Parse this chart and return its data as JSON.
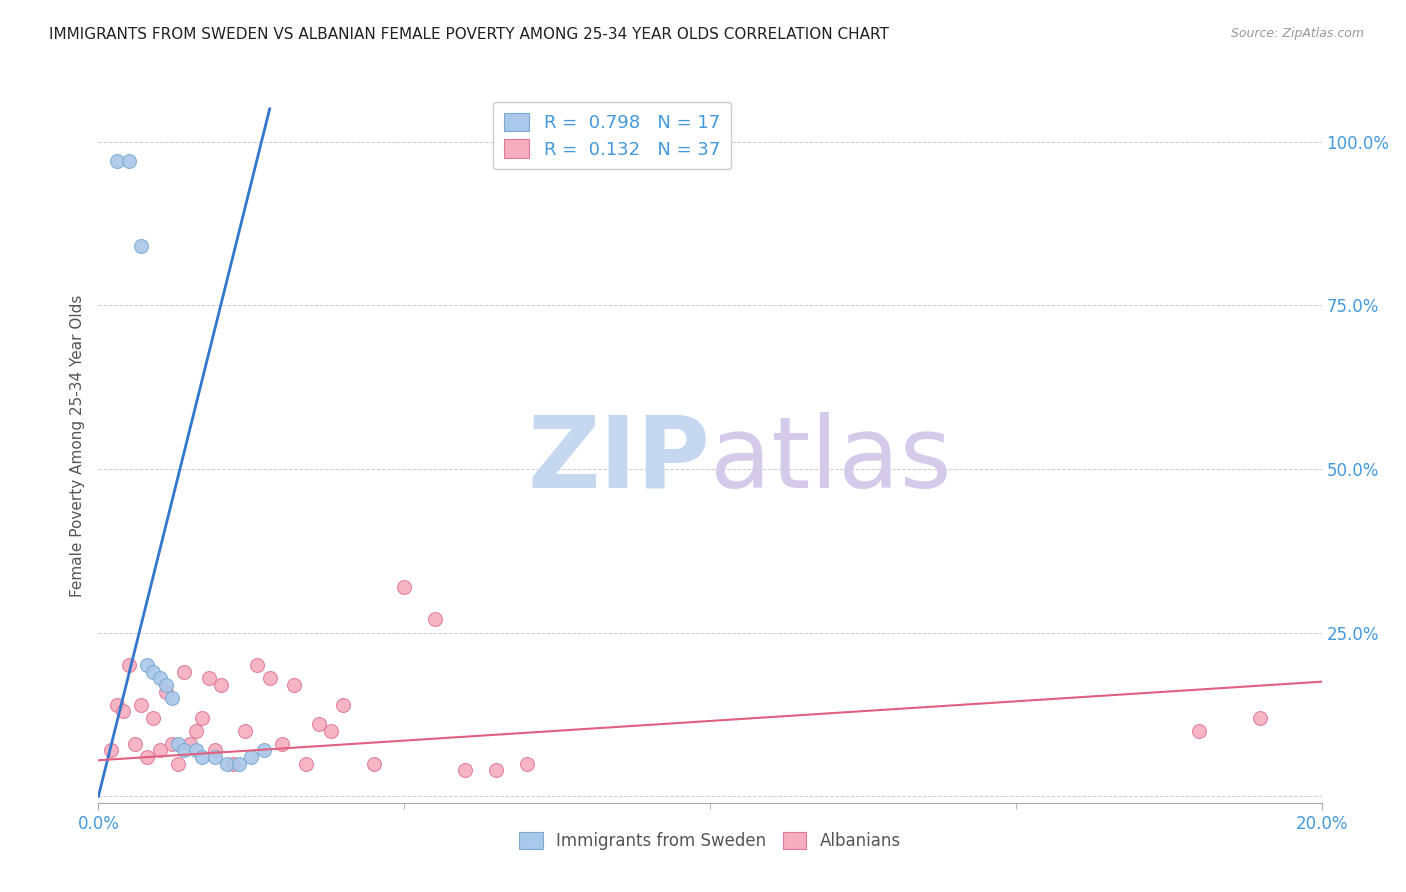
{
  "title": "IMMIGRANTS FROM SWEDEN VS ALBANIAN FEMALE POVERTY AMONG 25-34 YEAR OLDS CORRELATION CHART",
  "source": "Source: ZipAtlas.com",
  "ylabel": "Female Poverty Among 25-34 Year Olds",
  "ytick_labels": [
    "",
    "25.0%",
    "50.0%",
    "75.0%",
    "100.0%"
  ],
  "ytick_values": [
    0,
    0.25,
    0.5,
    0.75,
    1.0
  ],
  "xtick_major": [
    0.0,
    0.2
  ],
  "xtick_major_labels": [
    "0.0%",
    "20.0%"
  ],
  "xtick_minor": [
    0.05,
    0.1,
    0.15
  ],
  "xlim": [
    0,
    0.2
  ],
  "ylim": [
    -0.01,
    1.08
  ],
  "legend_entries": [
    {
      "label": "Immigrants from Sweden",
      "R": "0.798",
      "N": "17",
      "color": "#aac8ea",
      "edgecolor": "#7aaad0"
    },
    {
      "label": "Albanians",
      "R": "0.132",
      "N": "37",
      "color": "#f5adbf",
      "edgecolor": "#e07898"
    }
  ],
  "sweden_scatter": {
    "x": [
      0.003,
      0.005,
      0.007,
      0.008,
      0.009,
      0.01,
      0.011,
      0.012,
      0.013,
      0.014,
      0.016,
      0.017,
      0.019,
      0.021,
      0.023,
      0.025,
      0.027
    ],
    "y": [
      0.97,
      0.97,
      0.84,
      0.2,
      0.19,
      0.18,
      0.17,
      0.15,
      0.08,
      0.07,
      0.07,
      0.06,
      0.06,
      0.05,
      0.05,
      0.06,
      0.07
    ],
    "size": 100
  },
  "albanian_scatter": {
    "x": [
      0.002,
      0.003,
      0.004,
      0.005,
      0.006,
      0.007,
      0.008,
      0.009,
      0.01,
      0.011,
      0.012,
      0.013,
      0.014,
      0.015,
      0.016,
      0.017,
      0.018,
      0.019,
      0.02,
      0.022,
      0.024,
      0.026,
      0.028,
      0.03,
      0.032,
      0.034,
      0.036,
      0.038,
      0.04,
      0.045,
      0.05,
      0.055,
      0.06,
      0.065,
      0.07,
      0.18,
      0.19
    ],
    "y": [
      0.07,
      0.14,
      0.13,
      0.2,
      0.08,
      0.14,
      0.06,
      0.12,
      0.07,
      0.16,
      0.08,
      0.05,
      0.19,
      0.08,
      0.1,
      0.12,
      0.18,
      0.07,
      0.17,
      0.05,
      0.1,
      0.2,
      0.18,
      0.08,
      0.17,
      0.05,
      0.11,
      0.1,
      0.14,
      0.05,
      0.32,
      0.27,
      0.04,
      0.04,
      0.05,
      0.1,
      0.12
    ],
    "size": 100
  },
  "sweden_trend_x": [
    0.0,
    0.028
  ],
  "sweden_trend_y": [
    0.0,
    1.05
  ],
  "albanian_trend_x": [
    0.0,
    0.2
  ],
  "albanian_trend_y": [
    0.055,
    0.175
  ],
  "sweden_trend_color": "#3377cc",
  "albanian_trend_color": "#e06080",
  "grid_color": "#cccccc",
  "bg_color": "#ffffff",
  "title_color": "#222222",
  "axis_label_color": "#4499dd",
  "watermark_zip_color": "#c5d8f0",
  "watermark_atlas_color": "#d5caea"
}
